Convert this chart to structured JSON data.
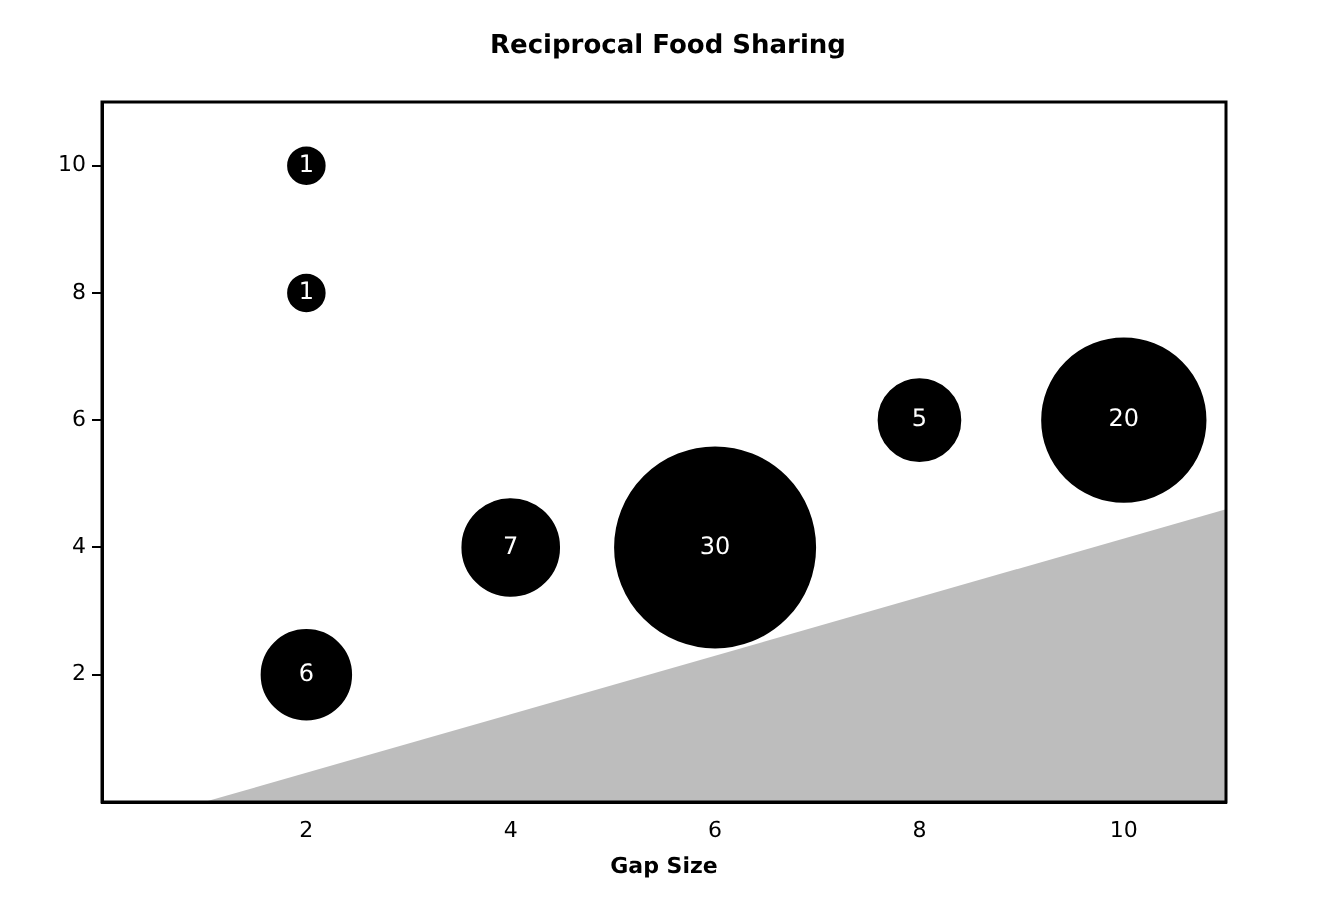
{
  "chart_data": {
    "type": "bubble",
    "title": "Reciprocal Food Sharing",
    "xlabel": "Gap Size",
    "xlim": [
      0,
      11
    ],
    "ylim": [
      0,
      11
    ],
    "xticks": [
      2,
      4,
      6,
      8,
      10
    ],
    "yticks": [
      2,
      4,
      6,
      8,
      10
    ],
    "grid": false,
    "legend": false,
    "series": [
      {
        "type": "area",
        "color": "#bdbdbd",
        "x": [
          1,
          11
        ],
        "values": [
          0,
          4.6
        ]
      },
      {
        "type": "bubble",
        "color": "#000000",
        "x": [
          2,
          2,
          2,
          4,
          6,
          8,
          10
        ],
        "values": [
          10,
          8,
          2,
          4,
          4,
          6,
          6
        ],
        "sizes": [
          1,
          1,
          6,
          7,
          30,
          5,
          20
        ],
        "value_labels": [
          "1",
          "1",
          "6",
          "7",
          "30",
          "5",
          "20"
        ]
      }
    ]
  }
}
